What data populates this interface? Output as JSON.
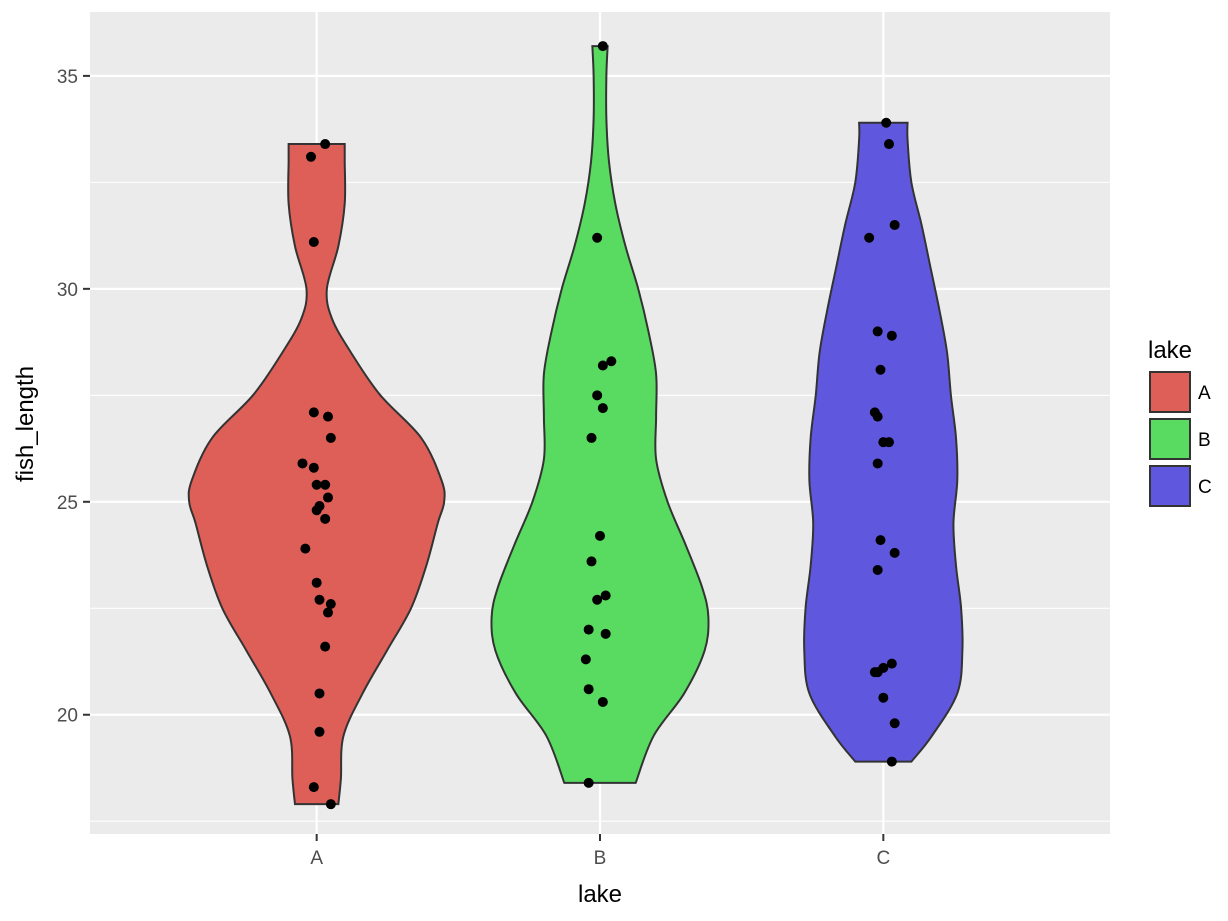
{
  "chart_data": {
    "type": "violin",
    "xlabel": "lake",
    "ylabel": "fish_length",
    "categories": [
      "A",
      "B",
      "C"
    ],
    "ylim": [
      17.2,
      36.5
    ],
    "yticks": [
      20,
      25,
      30,
      35
    ],
    "grid": true,
    "legend": {
      "title": "lake",
      "position": "right",
      "entries": [
        {
          "label": "A",
          "color": "#DE5F58"
        },
        {
          "label": "B",
          "color": "#58DB60"
        },
        {
          "label": "C",
          "color": "#5F58DE"
        }
      ]
    },
    "series": [
      {
        "category": "A",
        "color": "#DE5F58",
        "range": [
          17.9,
          33.4
        ],
        "density": [
          [
            17.9,
            0.17
          ],
          [
            18.5,
            0.19
          ],
          [
            19.5,
            0.21
          ],
          [
            20.5,
            0.36
          ],
          [
            21.5,
            0.55
          ],
          [
            22.5,
            0.74
          ],
          [
            23.5,
            0.86
          ],
          [
            24.5,
            0.95
          ],
          [
            25.0,
            1.0
          ],
          [
            25.5,
            0.98
          ],
          [
            26.5,
            0.82
          ],
          [
            27.5,
            0.5
          ],
          [
            28.5,
            0.27
          ],
          [
            29.3,
            0.12
          ],
          [
            30.0,
            0.08
          ],
          [
            31.0,
            0.17
          ],
          [
            32.0,
            0.22
          ],
          [
            33.0,
            0.22
          ],
          [
            33.4,
            0.22
          ]
        ],
        "points": [
          [
            -0.02,
            33.1
          ],
          [
            0.03,
            33.4
          ],
          [
            -0.01,
            31.1
          ],
          [
            -0.01,
            27.1
          ],
          [
            0.04,
            27.0
          ],
          [
            0.05,
            26.5
          ],
          [
            -0.05,
            25.9
          ],
          [
            -0.01,
            25.8
          ],
          [
            0.0,
            25.4
          ],
          [
            0.03,
            25.4
          ],
          [
            0.04,
            25.1
          ],
          [
            0.01,
            24.9
          ],
          [
            0.0,
            24.8
          ],
          [
            0.03,
            24.6
          ],
          [
            -0.04,
            23.9
          ],
          [
            0.0,
            23.1
          ],
          [
            0.01,
            22.7
          ],
          [
            0.05,
            22.6
          ],
          [
            0.04,
            22.4
          ],
          [
            0.03,
            21.6
          ],
          [
            0.01,
            20.5
          ],
          [
            0.01,
            19.6
          ],
          [
            -0.01,
            18.3
          ],
          [
            0.05,
            17.9
          ]
        ]
      },
      {
        "category": "B",
        "color": "#58DB60",
        "range": [
          18.4,
          35.7
        ],
        "density": [
          [
            18.4,
            0.28
          ],
          [
            19.5,
            0.42
          ],
          [
            20.5,
            0.66
          ],
          [
            21.5,
            0.82
          ],
          [
            22.3,
            0.85
          ],
          [
            23.0,
            0.8
          ],
          [
            24.0,
            0.67
          ],
          [
            25.0,
            0.53
          ],
          [
            26.0,
            0.44
          ],
          [
            27.0,
            0.44
          ],
          [
            28.0,
            0.44
          ],
          [
            29.0,
            0.38
          ],
          [
            30.0,
            0.3
          ],
          [
            31.0,
            0.2
          ],
          [
            32.0,
            0.12
          ],
          [
            33.0,
            0.07
          ],
          [
            34.0,
            0.05
          ],
          [
            35.0,
            0.05
          ],
          [
            35.7,
            0.06
          ]
        ],
        "points": [
          [
            0.01,
            35.7
          ],
          [
            -0.01,
            31.2
          ],
          [
            0.04,
            28.3
          ],
          [
            0.01,
            28.2
          ],
          [
            -0.01,
            27.5
          ],
          [
            0.01,
            27.2
          ],
          [
            -0.03,
            26.5
          ],
          [
            0.0,
            24.2
          ],
          [
            -0.03,
            23.6
          ],
          [
            0.02,
            22.8
          ],
          [
            -0.01,
            22.7
          ],
          [
            -0.04,
            22.0
          ],
          [
            0.02,
            21.9
          ],
          [
            -0.05,
            21.3
          ],
          [
            -0.04,
            20.6
          ],
          [
            0.01,
            20.3
          ],
          [
            -0.04,
            18.4
          ]
        ]
      },
      {
        "category": "C",
        "color": "#5F58DE",
        "range": [
          18.9,
          33.9
        ],
        "density": [
          [
            18.9,
            0.22
          ],
          [
            19.5,
            0.38
          ],
          [
            20.5,
            0.58
          ],
          [
            21.5,
            0.62
          ],
          [
            22.5,
            0.61
          ],
          [
            23.5,
            0.57
          ],
          [
            24.5,
            0.55
          ],
          [
            25.5,
            0.58
          ],
          [
            26.5,
            0.57
          ],
          [
            27.5,
            0.53
          ],
          [
            28.5,
            0.5
          ],
          [
            29.5,
            0.44
          ],
          [
            30.5,
            0.37
          ],
          [
            31.5,
            0.3
          ],
          [
            32.5,
            0.22
          ],
          [
            33.5,
            0.19
          ],
          [
            33.9,
            0.19
          ]
        ],
        "points": [
          [
            0.01,
            33.9
          ],
          [
            0.02,
            33.4
          ],
          [
            0.04,
            31.5
          ],
          [
            -0.05,
            31.2
          ],
          [
            -0.02,
            29.0
          ],
          [
            0.03,
            28.9
          ],
          [
            -0.01,
            28.1
          ],
          [
            -0.03,
            27.1
          ],
          [
            -0.02,
            27.0
          ],
          [
            0.02,
            26.4
          ],
          [
            0.0,
            26.4
          ],
          [
            -0.02,
            25.9
          ],
          [
            -0.01,
            24.1
          ],
          [
            0.04,
            23.8
          ],
          [
            -0.02,
            23.4
          ],
          [
            0.03,
            21.2
          ],
          [
            -0.03,
            21.0
          ],
          [
            -0.02,
            21.0
          ],
          [
            0.0,
            21.1
          ],
          [
            0.0,
            20.4
          ],
          [
            0.04,
            19.8
          ],
          [
            0.03,
            18.9
          ]
        ]
      }
    ]
  }
}
